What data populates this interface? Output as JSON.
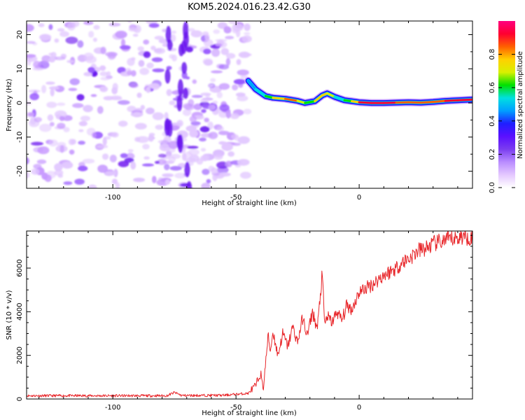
{
  "figure": {
    "title": "KOM5.2024.016.23.42.G30"
  },
  "chart_data": [
    {
      "type": "heatmap",
      "xlabel": "Height of straight line (km)",
      "ylabel": "Frequency (Hz)",
      "xlim": [
        -135,
        46
      ],
      "ylim": [
        -25,
        24
      ],
      "x_ticks": [
        -100,
        -50,
        0
      ],
      "y_ticks": [
        -20,
        -10,
        0,
        10,
        20
      ],
      "colorbar": {
        "label": "Normalized spectral amplitude",
        "range": [
          0,
          1
        ],
        "ticks": [
          "0.0",
          "0.2",
          "0.4",
          "0.6",
          "0.8"
        ],
        "colormap": [
          "#ffffff",
          "#e4c8ff",
          "#b98cff",
          "#7a3cf0",
          "#5a10ff",
          "#1f1fff",
          "#00a0ff",
          "#00e0e0",
          "#00e000",
          "#d8f000",
          "#ffd000",
          "#ff6000",
          "#ff0030",
          "#ff0080"
        ]
      },
      "noise_region_x": [
        -135,
        -45
      ],
      "ridge": {
        "x": [
          -45,
          -42,
          -38,
          -35,
          -30,
          -25,
          -22,
          -18,
          -15,
          -13,
          -10,
          -6,
          -3,
          0,
          5,
          10,
          15,
          20,
          25,
          30,
          35,
          40,
          46
        ],
        "frequency": [
          6.5,
          4.0,
          2.0,
          1.5,
          1.2,
          0.6,
          0.0,
          0.5,
          2.2,
          2.8,
          1.8,
          0.8,
          0.5,
          0.2,
          0.0,
          0.0,
          0.1,
          0.2,
          0.1,
          0.3,
          0.6,
          0.8,
          1.0
        ],
        "amplitude": [
          0.45,
          0.5,
          0.6,
          0.7,
          0.85,
          0.8,
          0.6,
          0.7,
          0.85,
          0.75,
          0.6,
          0.55,
          0.7,
          0.9,
          0.92,
          0.95,
          0.9,
          0.85,
          0.8,
          0.85,
          0.9,
          0.95,
          0.92
        ]
      }
    },
    {
      "type": "line",
      "xlabel": "Height of straight line (km)",
      "ylabel": "SNR (10 * v/v)",
      "xlim": [
        -135,
        46
      ],
      "ylim": [
        0,
        7700
      ],
      "x_ticks": [
        -100,
        -50,
        0
      ],
      "y_ticks": [
        0,
        2000,
        4000,
        6000
      ],
      "color": "#e8262a",
      "series": [
        {
          "x": [
            -135,
            -100,
            -78,
            -75,
            -72,
            -55,
            -45,
            -42,
            -40,
            -39,
            -38,
            -37,
            -36,
            -35,
            -33,
            -31,
            -29,
            -27,
            -25,
            -23,
            -21,
            -19,
            -17,
            -15,
            -14,
            -13,
            -11,
            -9,
            -7,
            -5,
            -3,
            0,
            3,
            6,
            9,
            12,
            15,
            18,
            21,
            24,
            27,
            30,
            33,
            36,
            39,
            42,
            46
          ],
          "values": [
            150,
            150,
            150,
            300,
            160,
            170,
            260,
            600,
            1200,
            400,
            1600,
            2900,
            2200,
            3100,
            2000,
            3000,
            2400,
            3300,
            2600,
            3700,
            2900,
            4000,
            3200,
            5700,
            3400,
            3800,
            3500,
            4000,
            3600,
            4300,
            4100,
            4900,
            5100,
            5300,
            5600,
            5800,
            6000,
            6300,
            6500,
            6800,
            6900,
            7100,
            7200,
            7300,
            7350,
            7450,
            7400
          ]
        }
      ]
    }
  ]
}
